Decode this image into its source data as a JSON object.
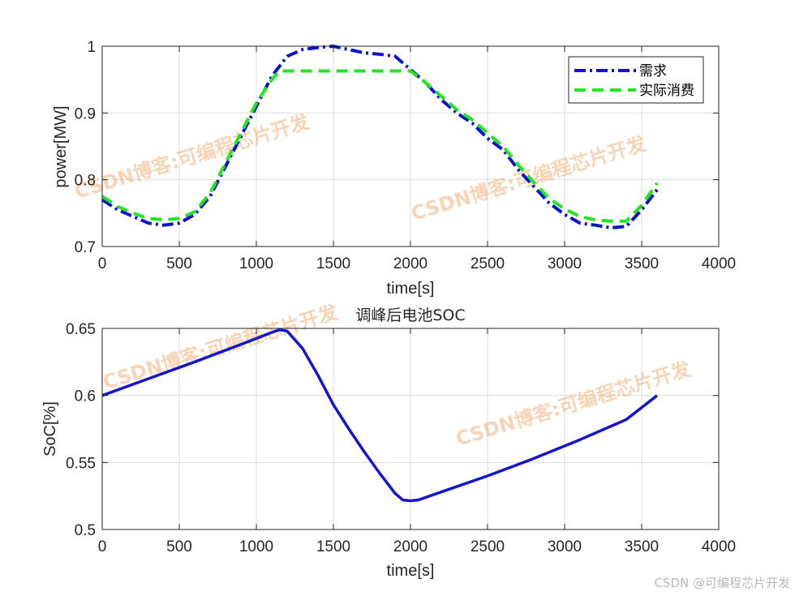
{
  "chart_data": [
    {
      "type": "line",
      "title": "",
      "xlabel": "time[s]",
      "ylabel": "power[MW]",
      "xlim": [
        0,
        4000
      ],
      "ylim": [
        0.7,
        1.0
      ],
      "xticks": [
        "0",
        "500",
        "1000",
        "1500",
        "2000",
        "2500",
        "3000",
        "3500",
        "4000"
      ],
      "yticks": [
        "0.7",
        "0.8",
        "0.9",
        "1"
      ],
      "grid": true,
      "legend_position": "top-right",
      "series": [
        {
          "name": "需求",
          "color": "#0a14c8",
          "style": "dash-dot",
          "x": [
            0,
            100,
            200,
            300,
            400,
            500,
            600,
            700,
            800,
            900,
            1000,
            1100,
            1200,
            1300,
            1400,
            1500,
            1600,
            1700,
            1800,
            1900,
            2000,
            2100,
            2200,
            2300,
            2400,
            2500,
            2600,
            2700,
            2800,
            2900,
            3000,
            3100,
            3200,
            3300,
            3400,
            3500,
            3600
          ],
          "y": [
            0.77,
            0.755,
            0.745,
            0.735,
            0.732,
            0.735,
            0.748,
            0.775,
            0.82,
            0.865,
            0.91,
            0.955,
            0.985,
            0.995,
            0.998,
            1.0,
            0.995,
            0.99,
            0.988,
            0.985,
            0.965,
            0.945,
            0.92,
            0.9,
            0.885,
            0.862,
            0.845,
            0.815,
            0.79,
            0.765,
            0.748,
            0.735,
            0.732,
            0.728,
            0.73,
            0.755,
            0.785
          ]
        },
        {
          "name": "实际消费",
          "color": "#22e622",
          "style": "dashed",
          "x": [
            0,
            100,
            200,
            300,
            400,
            500,
            600,
            700,
            800,
            900,
            1000,
            1100,
            1150,
            1200,
            1300,
            1400,
            1500,
            1600,
            1700,
            1800,
            1900,
            1950,
            2000,
            2100,
            2200,
            2300,
            2400,
            2500,
            2600,
            2700,
            2800,
            2900,
            3000,
            3100,
            3200,
            3300,
            3400,
            3500,
            3600
          ],
          "y": [
            0.775,
            0.76,
            0.75,
            0.742,
            0.74,
            0.742,
            0.752,
            0.78,
            0.825,
            0.87,
            0.915,
            0.95,
            0.963,
            0.963,
            0.963,
            0.963,
            0.963,
            0.963,
            0.963,
            0.963,
            0.963,
            0.963,
            0.963,
            0.945,
            0.925,
            0.905,
            0.89,
            0.87,
            0.85,
            0.822,
            0.796,
            0.772,
            0.756,
            0.745,
            0.74,
            0.738,
            0.738,
            0.762,
            0.795
          ]
        }
      ]
    },
    {
      "type": "line",
      "title": "调峰后电池SOC",
      "xlabel": "time[s]",
      "ylabel": "SoC[%]",
      "xlim": [
        0,
        4000
      ],
      "ylim": [
        0.5,
        0.65
      ],
      "xticks": [
        "0",
        "500",
        "1000",
        "1500",
        "2000",
        "2500",
        "3000",
        "3500",
        "4000"
      ],
      "yticks": [
        "0.5",
        "0.55",
        "0.6",
        "0.65"
      ],
      "grid": true,
      "series": [
        {
          "name": "SOC",
          "color": "#1414d2",
          "style": "solid",
          "x": [
            0,
            300,
            600,
            900,
            1100,
            1150,
            1200,
            1300,
            1400,
            1500,
            1600,
            1700,
            1800,
            1900,
            1950,
            2000,
            2050,
            2200,
            2500,
            2800,
            3100,
            3400,
            3600
          ],
          "y": [
            0.6,
            0.6125,
            0.625,
            0.638,
            0.647,
            0.649,
            0.648,
            0.635,
            0.615,
            0.593,
            0.575,
            0.558,
            0.542,
            0.527,
            0.522,
            0.5215,
            0.522,
            0.528,
            0.54,
            0.553,
            0.567,
            0.582,
            0.6
          ]
        }
      ]
    }
  ],
  "watermarks": [
    "CSDN博客:可编程芯片开发",
    "CSDN博客:可编程芯片开发",
    "CSDN博客:可编程芯片开发",
    "CSDN博客:可编程芯片开发"
  ],
  "footer": {
    "text": "CSDN @可编程芯片开发"
  }
}
